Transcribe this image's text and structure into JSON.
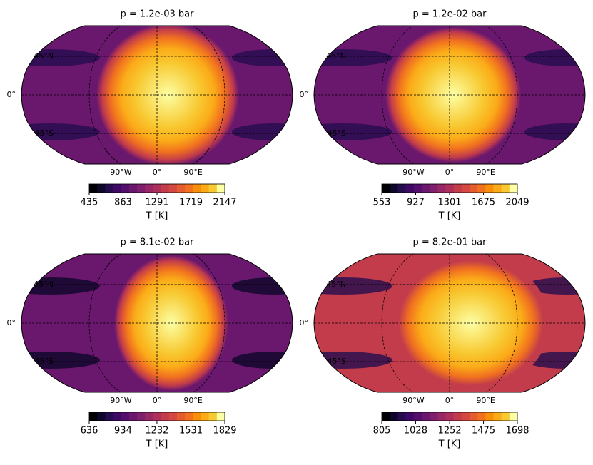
{
  "colormap": [
    "#000004",
    "#0d0829",
    "#240c4f",
    "#3d0965",
    "#540f6d",
    "#6a176e",
    "#801f6c",
    "#982766",
    "#ad305c",
    "#c23c4b",
    "#d44842",
    "#e55c30",
    "#f1711f",
    "#f98e09",
    "#fbab18",
    "#f8c932",
    "#fcffa4"
  ],
  "chart_data": [
    {
      "type": "map",
      "title": "p = 1.2e-03 bar",
      "projection": "robinson",
      "grid": true,
      "xlim": [
        -180,
        180
      ],
      "ylim": [
        -90,
        90
      ],
      "xticks": [
        {
          "value": -90,
          "label": "90°W"
        },
        {
          "value": 0,
          "label": "0°"
        },
        {
          "value": 90,
          "label": "90°E"
        }
      ],
      "yticks": [
        {
          "value": 45,
          "label": "45°N"
        },
        {
          "value": 0,
          "label": "0°"
        },
        {
          "value": -45,
          "label": "45°S"
        }
      ],
      "colorbar": {
        "label": "T [K]",
        "lim": [
          435,
          2147
        ],
        "ticks": [
          435,
          863,
          1291,
          1719,
          2147
        ]
      }
    },
    {
      "type": "map",
      "title": "p = 1.2e-02 bar",
      "projection": "robinson",
      "grid": true,
      "xlim": [
        -180,
        180
      ],
      "ylim": [
        -90,
        90
      ],
      "xticks": [
        {
          "value": -90,
          "label": "90°W"
        },
        {
          "value": 0,
          "label": "0°"
        },
        {
          "value": 90,
          "label": "90°E"
        }
      ],
      "yticks": [
        {
          "value": 45,
          "label": "45°N"
        },
        {
          "value": 0,
          "label": "0°"
        },
        {
          "value": -45,
          "label": "45°S"
        }
      ],
      "colorbar": {
        "label": "T [K]",
        "lim": [
          553,
          2049
        ],
        "ticks": [
          553,
          927,
          1301,
          1675,
          2049
        ]
      }
    },
    {
      "type": "map",
      "title": "p = 8.1e-02 bar",
      "projection": "robinson",
      "grid": true,
      "xlim": [
        -180,
        180
      ],
      "ylim": [
        -90,
        90
      ],
      "xticks": [
        {
          "value": -90,
          "label": "90°W"
        },
        {
          "value": 0,
          "label": "0°"
        },
        {
          "value": 90,
          "label": "90°E"
        }
      ],
      "yticks": [
        {
          "value": 45,
          "label": "45°N"
        },
        {
          "value": 0,
          "label": "0°"
        },
        {
          "value": -45,
          "label": "45°S"
        }
      ],
      "colorbar": {
        "label": "T [K]",
        "lim": [
          636,
          1829
        ],
        "ticks": [
          636,
          934,
          1232,
          1531,
          1829
        ]
      }
    },
    {
      "type": "map",
      "title": "p = 8.2e-01 bar",
      "projection": "robinson",
      "grid": true,
      "xlim": [
        -180,
        180
      ],
      "ylim": [
        -90,
        90
      ],
      "xticks": [
        {
          "value": -90,
          "label": "90°W"
        },
        {
          "value": 0,
          "label": "0°"
        },
        {
          "value": 90,
          "label": "90°E"
        }
      ],
      "yticks": [
        {
          "value": 45,
          "label": "45°N"
        },
        {
          "value": 0,
          "label": "0°"
        },
        {
          "value": -45,
          "label": "45°S"
        }
      ],
      "colorbar": {
        "label": "T [K]",
        "lim": [
          805,
          1698
        ],
        "ticks": [
          805,
          1028,
          1252,
          1475,
          1698
        ]
      }
    }
  ]
}
